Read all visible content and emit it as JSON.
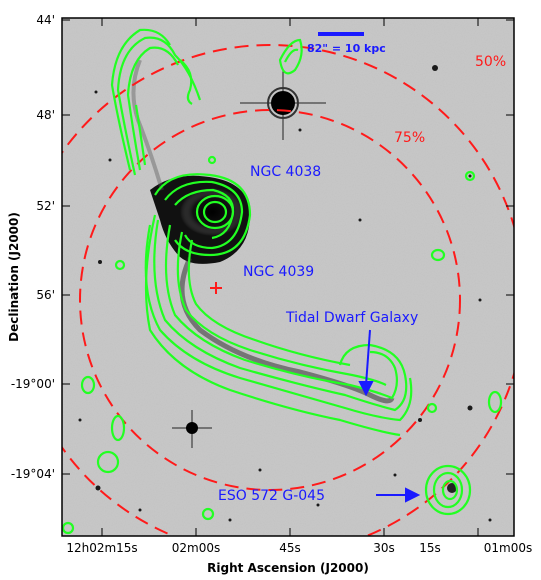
{
  "axes": {
    "xlabel": "Right Ascension (J2000)",
    "ylabel": "Declination (J2000)",
    "x_ticks": [
      "12h02m15s",
      "02m00s",
      "45s",
      "30s",
      "15s",
      "01m00s"
    ],
    "y_ticks": [
      "44'",
      "48'",
      "52'",
      "56'",
      "-19°00'",
      "-19°04'"
    ]
  },
  "labels": {
    "ngc4038": "NGC 4038",
    "ngc4039": "NGC 4039",
    "tdg": "Tidal Dwarf Galaxy",
    "eso": "ESO 572 G-045",
    "scale": "82\" = 10 kpc",
    "pct75": "75%",
    "pct50": "50%"
  },
  "colors": {
    "contour": "#22ff22",
    "annotation_blue": "#1a1aff",
    "annotation_red": "#ff1a1a",
    "sky": "#c8c8c8"
  }
}
